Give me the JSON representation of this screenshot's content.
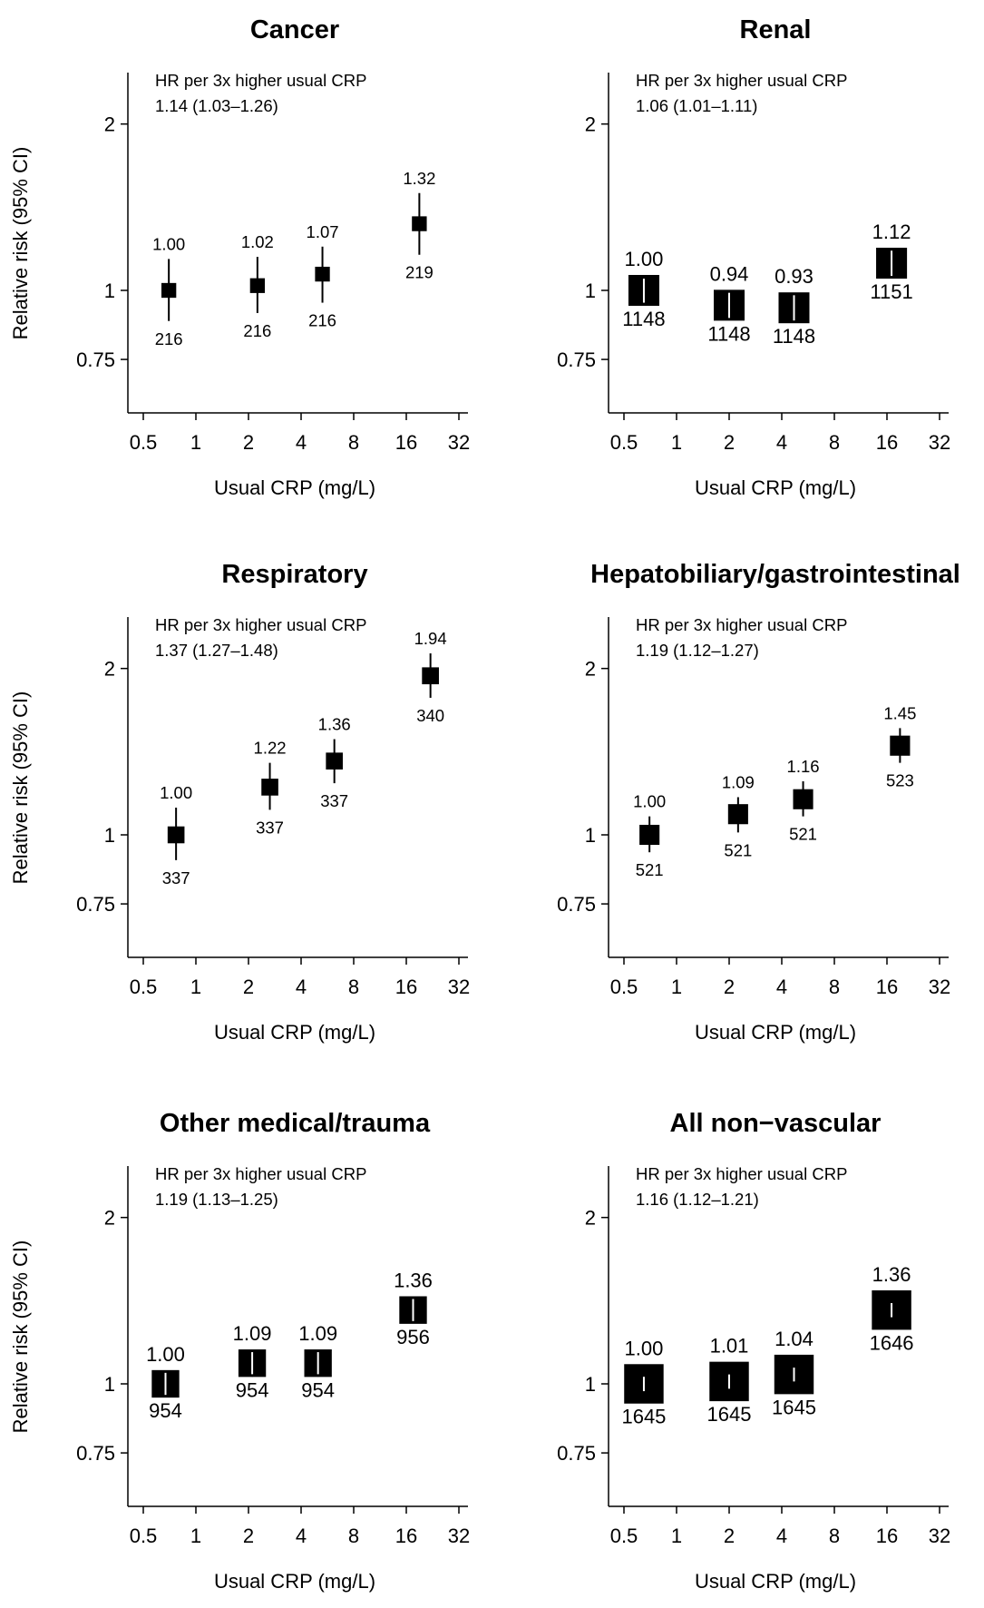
{
  "chart_data": [
    {
      "type": "scatter",
      "title": "Cancer",
      "xlabel": "Usual CRP (mg/L)",
      "ylabel": "Relative risk (95% CI)",
      "x_scale": "log2",
      "y_scale": "log",
      "xticks": [
        "0.5",
        "1",
        "2",
        "4",
        "8",
        "16",
        "32"
      ],
      "yticks": [
        "0.75",
        "1",
        "2"
      ],
      "annotation": [
        "HR per 3x higher usual CRP",
        "1.14 (1.03–1.26)"
      ],
      "points": [
        {
          "x": 0.7,
          "rr": 1.0,
          "lo": 0.88,
          "hi": 1.14,
          "label": "1.00",
          "n": "216"
        },
        {
          "x": 2.25,
          "rr": 1.02,
          "lo": 0.91,
          "hi": 1.15,
          "label": "1.02",
          "n": "216"
        },
        {
          "x": 5.3,
          "rr": 1.07,
          "lo": 0.95,
          "hi": 1.2,
          "label": "1.07",
          "n": "216"
        },
        {
          "x": 19.0,
          "rr": 1.32,
          "lo": 1.16,
          "hi": 1.5,
          "label": "1.32",
          "n": "219"
        }
      ]
    },
    {
      "type": "scatter",
      "title": "Renal",
      "xlabel": "Usual CRP (mg/L)",
      "ylabel": "",
      "x_scale": "log2",
      "y_scale": "log",
      "xticks": [
        "0.5",
        "1",
        "2",
        "4",
        "8",
        "16",
        "32"
      ],
      "yticks": [
        "0.75",
        "1",
        "2"
      ],
      "annotation": [
        "HR per 3x higher usual CRP",
        "1.06 (1.01–1.11)"
      ],
      "points": [
        {
          "x": 0.65,
          "rr": 1.0,
          "lo": 0.95,
          "hi": 1.05,
          "label": "1.00",
          "n": "1148"
        },
        {
          "x": 2.0,
          "rr": 0.94,
          "lo": 0.89,
          "hi": 0.99,
          "label": "0.94",
          "n": "1148"
        },
        {
          "x": 4.7,
          "rr": 0.93,
          "lo": 0.88,
          "hi": 0.98,
          "label": "0.93",
          "n": "1148"
        },
        {
          "x": 17.0,
          "rr": 1.12,
          "lo": 1.06,
          "hi": 1.18,
          "label": "1.12",
          "n": "1151"
        }
      ]
    },
    {
      "type": "scatter",
      "title": "Respiratory",
      "xlabel": "Usual CRP (mg/L)",
      "ylabel": "Relative risk (95% CI)",
      "x_scale": "log2",
      "y_scale": "log",
      "xticks": [
        "0.5",
        "1",
        "2",
        "4",
        "8",
        "16",
        "32"
      ],
      "yticks": [
        "0.75",
        "1",
        "2"
      ],
      "annotation": [
        "HR per 3x higher usual CRP",
        "1.37 (1.27–1.48)"
      ],
      "points": [
        {
          "x": 0.77,
          "rr": 1.0,
          "lo": 0.9,
          "hi": 1.12,
          "label": "1.00",
          "n": "337"
        },
        {
          "x": 2.65,
          "rr": 1.22,
          "lo": 1.11,
          "hi": 1.35,
          "label": "1.22",
          "n": "337"
        },
        {
          "x": 6.2,
          "rr": 1.36,
          "lo": 1.24,
          "hi": 1.49,
          "label": "1.36",
          "n": "337"
        },
        {
          "x": 22.0,
          "rr": 1.94,
          "lo": 1.77,
          "hi": 2.13,
          "label": "1.94",
          "n": "340"
        }
      ]
    },
    {
      "type": "scatter",
      "title": "Hepatobiliary/gastrointestinal",
      "xlabel": "Usual CRP (mg/L)",
      "ylabel": "",
      "x_scale": "log2",
      "y_scale": "log",
      "xticks": [
        "0.5",
        "1",
        "2",
        "4",
        "8",
        "16",
        "32"
      ],
      "yticks": [
        "0.75",
        "1",
        "2"
      ],
      "annotation": [
        "HR per 3x higher usual CRP",
        "1.19 (1.12–1.27)"
      ],
      "points": [
        {
          "x": 0.7,
          "rr": 1.0,
          "lo": 0.93,
          "hi": 1.08,
          "label": "1.00",
          "n": "521"
        },
        {
          "x": 2.25,
          "rr": 1.09,
          "lo": 1.01,
          "hi": 1.17,
          "label": "1.09",
          "n": "521"
        },
        {
          "x": 5.3,
          "rr": 1.16,
          "lo": 1.08,
          "hi": 1.25,
          "label": "1.16",
          "n": "521"
        },
        {
          "x": 19.0,
          "rr": 1.45,
          "lo": 1.35,
          "hi": 1.56,
          "label": "1.45",
          "n": "523"
        }
      ]
    },
    {
      "type": "scatter",
      "title": "Other medical/trauma",
      "xlabel": "Usual CRP (mg/L)",
      "ylabel": "Relative risk (95% CI)",
      "x_scale": "log2",
      "y_scale": "log",
      "xticks": [
        "0.5",
        "1",
        "2",
        "4",
        "8",
        "16",
        "32"
      ],
      "yticks": [
        "0.75",
        "1",
        "2"
      ],
      "annotation": [
        "HR per 3x higher usual CRP",
        "1.19 (1.13–1.25)"
      ],
      "points": [
        {
          "x": 0.67,
          "rr": 1.0,
          "lo": 0.95,
          "hi": 1.05,
          "label": "1.00",
          "n": "954"
        },
        {
          "x": 2.1,
          "rr": 1.09,
          "lo": 1.03,
          "hi": 1.15,
          "label": "1.09",
          "n": "954"
        },
        {
          "x": 5.0,
          "rr": 1.09,
          "lo": 1.03,
          "hi": 1.15,
          "label": "1.09",
          "n": "954"
        },
        {
          "x": 17.5,
          "rr": 1.36,
          "lo": 1.29,
          "hi": 1.43,
          "label": "1.36",
          "n": "956"
        }
      ]
    },
    {
      "type": "scatter",
      "title": "All non−vascular",
      "xlabel": "Usual CRP (mg/L)",
      "ylabel": "",
      "x_scale": "log2",
      "y_scale": "log",
      "xticks": [
        "0.5",
        "1",
        "2",
        "4",
        "8",
        "16",
        "32"
      ],
      "yticks": [
        "0.75",
        "1",
        "2"
      ],
      "annotation": [
        "HR per 3x higher usual CRP",
        "1.16 (1.12–1.21)"
      ],
      "points": [
        {
          "x": 0.65,
          "rr": 1.0,
          "lo": 0.97,
          "hi": 1.03,
          "label": "1.00",
          "n": "1645"
        },
        {
          "x": 2.0,
          "rr": 1.01,
          "lo": 0.98,
          "hi": 1.04,
          "label": "1.01",
          "n": "1645"
        },
        {
          "x": 4.7,
          "rr": 1.04,
          "lo": 1.01,
          "hi": 1.07,
          "label": "1.04",
          "n": "1645"
        },
        {
          "x": 17.0,
          "rr": 1.36,
          "lo": 1.32,
          "hi": 1.4,
          "label": "1.36",
          "n": "1646"
        }
      ]
    }
  ]
}
